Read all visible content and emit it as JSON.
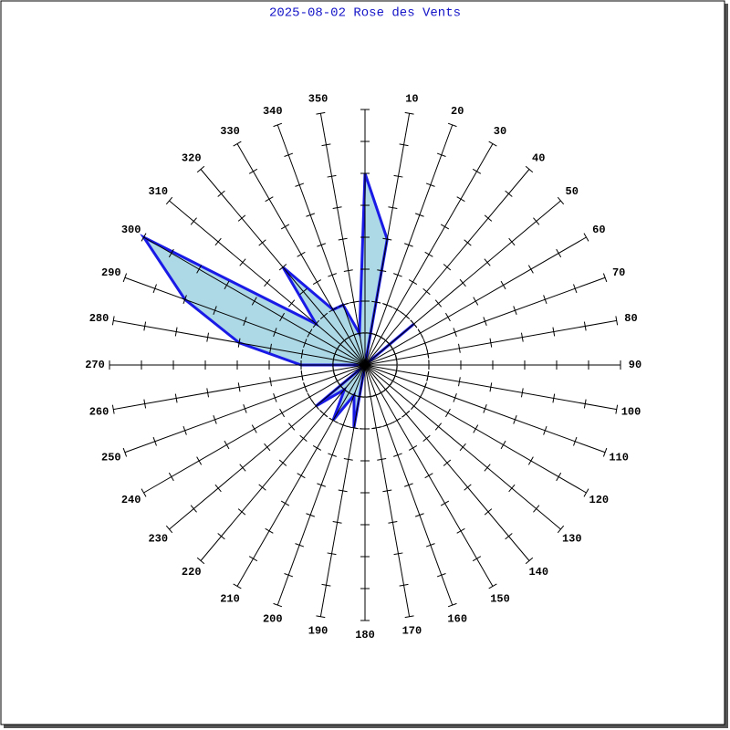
{
  "chart_data": {
    "type": "rose",
    "title": "2025-08-02 Rose des Vents",
    "categories": [
      null,
      10,
      20,
      30,
      40,
      50,
      60,
      70,
      80,
      90,
      100,
      110,
      120,
      130,
      140,
      150,
      160,
      170,
      180,
      190,
      200,
      210,
      220,
      230,
      240,
      250,
      260,
      270,
      280,
      290,
      300,
      310,
      320,
      330,
      340,
      350
    ],
    "values": [
      6,
      4,
      0,
      0,
      0,
      2,
      0,
      0,
      0,
      0,
      0,
      0,
      0,
      0,
      0,
      0,
      0,
      0,
      0,
      2,
      1,
      2,
      1,
      2,
      0,
      0,
      0,
      2,
      4,
      6,
      8,
      2,
      4,
      2,
      2,
      1
    ],
    "color": "#1a1ae6",
    "fill": "#add8e6",
    "rlim": [
      0,
      8
    ],
    "rticks": [
      1,
      2,
      3,
      4,
      5,
      6,
      7,
      8
    ],
    "rings": [
      1,
      2
    ]
  }
}
